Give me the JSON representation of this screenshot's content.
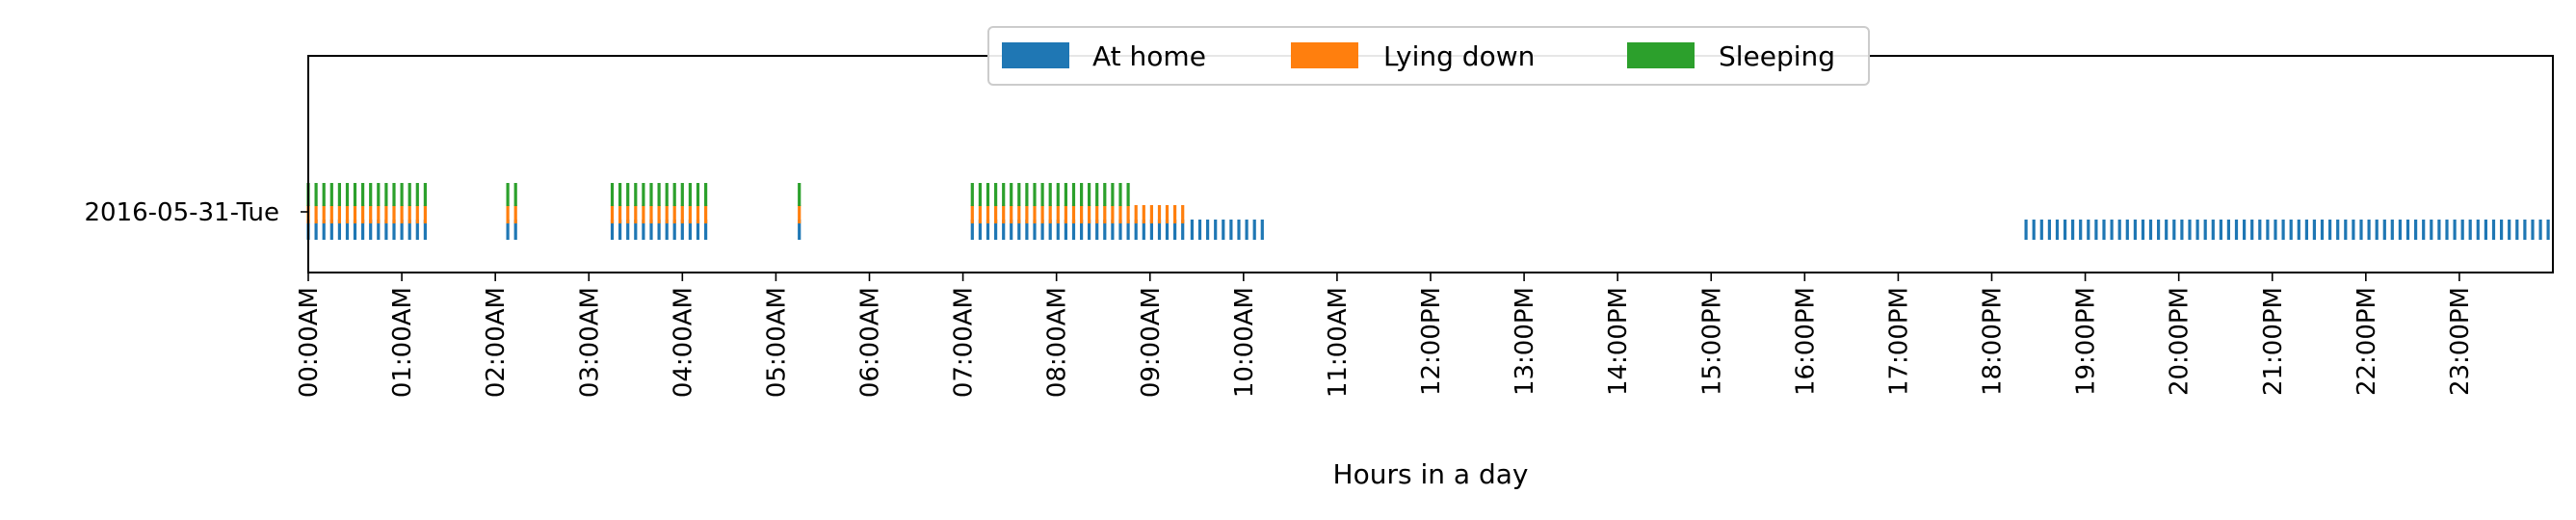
{
  "chart_data": {
    "type": "timeline",
    "xlabel": "Hours in a day",
    "ylabel": "",
    "xlim": [
      0,
      24
    ],
    "grid": false,
    "legend_position": "top-center",
    "row_label": "2016-05-31-Tue",
    "x_tick_labels": [
      "00:00AM",
      "01:00AM",
      "02:00AM",
      "03:00AM",
      "04:00AM",
      "05:00AM",
      "06:00AM",
      "07:00AM",
      "08:00AM",
      "09:00AM",
      "10:00AM",
      "11:00AM",
      "12:00PM",
      "13:00PM",
      "14:00PM",
      "15:00PM",
      "16:00PM",
      "17:00PM",
      "18:00PM",
      "19:00PM",
      "20:00PM",
      "21:00PM",
      "22:00PM",
      "23:00PM"
    ],
    "x_tick_values": [
      0,
      1,
      2,
      3,
      4,
      5,
      6,
      7,
      8,
      9,
      10,
      11,
      12,
      13,
      14,
      15,
      16,
      17,
      18,
      19,
      20,
      21,
      22,
      23
    ],
    "minute_step": 5,
    "series": [
      {
        "name": "At home",
        "color": "#1f77b4",
        "intervals_hours": [
          [
            0.0,
            1.3333
          ],
          [
            2.1333,
            2.25
          ],
          [
            3.25,
            4.3
          ],
          [
            5.25,
            5.3
          ],
          [
            7.1,
            9.35
          ],
          [
            9.45,
            10.25
          ],
          [
            18.3667,
            24.0
          ]
        ]
      },
      {
        "name": "Lying down",
        "color": "#ff7f0e",
        "intervals_hours": [
          [
            0.0,
            1.3333
          ],
          [
            2.1333,
            2.25
          ],
          [
            3.25,
            4.3
          ],
          [
            5.25,
            5.3
          ],
          [
            7.1,
            9.35
          ]
        ]
      },
      {
        "name": "Sleeping",
        "color": "#2ca02c",
        "intervals_hours": [
          [
            0.0,
            1.3333
          ],
          [
            2.1333,
            2.25
          ],
          [
            3.25,
            4.3
          ],
          [
            5.25,
            5.3
          ],
          [
            7.1,
            8.8333
          ]
        ]
      }
    ]
  }
}
